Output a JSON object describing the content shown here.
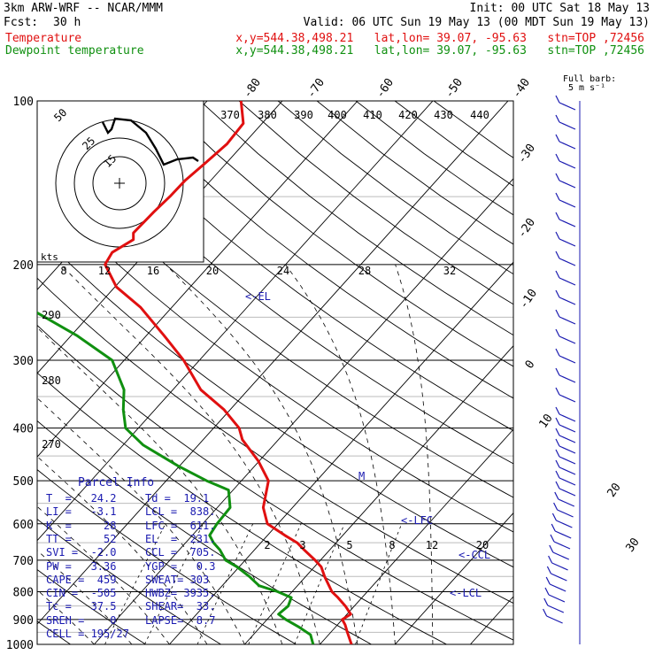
{
  "header": {
    "model": "3km ARW-WRF -- NCAR/MMM",
    "init": "Init: 00 UTC Sat 18 May 13",
    "fcst_label": "Fcst:",
    "fcst_value": "30 h",
    "valid": "Valid: 06 UTC Sun 19 May 13 (00 MDT Sun 19 May 13)",
    "temp_label": "Temperature",
    "dew_label": "Dewpoint temperature",
    "loc_info": "x,y=544.38,498.21   lat,lon= 39.07, -95.63   stn=TOP ,72456"
  },
  "colors": {
    "temperature": "#e01010",
    "dewpoint": "#109010",
    "parcel": "#1a1ab0",
    "isobar": "#000000",
    "grid": "#bbbbbb"
  },
  "barb_legend": {
    "line1": "Full barb:",
    "line2": "5 m s⁻¹"
  },
  "hodo_label": "kts",
  "annotations": {
    "el": "<-EL",
    "lfc": "<-LFC",
    "ccl": "<-CCL",
    "lcl": "<-LCL"
  },
  "parcel_info": {
    "title": "Parcel Info",
    "rows": [
      {
        "a": "T  =   24.2",
        "b": "Td =  19.1"
      },
      {
        "a": "LI =   -3.1",
        "b": "LCL =  838."
      },
      {
        "a": "K  =     28",
        "b": "LFC =  611."
      },
      {
        "a": "TT =     52",
        "b": "EL  =  231."
      },
      {
        "a": "SVI =  -2.0",
        "b": "CCL =  705."
      },
      {
        "a": "PW =   3.36",
        "b": "YGP =   0.3"
      },
      {
        "a": "CAPE =  459",
        "b": "SWEAT= 303"
      },
      {
        "a": "CIN =  -505",
        "b": "HWBZ= 3935."
      },
      {
        "a": "Tc =   37.5",
        "b": "SHEAR=  33."
      },
      {
        "a": "SREH =    0",
        "b": "LAPSE=  8.7"
      },
      {
        "a": "CELL = 195/27",
        "b": ""
      }
    ]
  },
  "chart_data": {
    "type": "line",
    "title": "",
    "xlabel": "",
    "ylabel": "",
    "y_axis": "pressure (hPa), log scale",
    "y_ticks": [
      100,
      200,
      300,
      400,
      500,
      600,
      700,
      800,
      900,
      1000
    ],
    "temperature_labels": [
      "-80",
      "-70",
      "-60",
      "-50",
      "-40",
      "-30",
      "-20",
      "-10",
      "0",
      "10",
      "20",
      "30",
      "40"
    ],
    "theta_labels": [
      "370",
      "380",
      "390",
      "400",
      "410",
      "420",
      "430",
      "440",
      "290",
      "280",
      "270"
    ],
    "mixing_ratio_labels": [
      "2",
      "3",
      "5",
      "8",
      "12",
      "20"
    ],
    "hodograph_ring_labels": [
      "50",
      "25",
      "15"
    ],
    "hodo_speed_ticks": [
      "8",
      "12",
      "16",
      "20",
      "24",
      "28",
      "32"
    ],
    "series": [
      {
        "name": "Temperature",
        "pressure": [
          1000,
          950,
          920,
          900,
          880,
          850,
          820,
          800,
          780,
          750,
          720,
          700,
          670,
          650,
          630,
          600,
          560,
          500,
          460,
          420,
          400,
          370,
          340,
          300,
          270,
          240,
          220,
          200,
          190,
          180,
          175,
          160,
          150,
          140,
          130,
          120,
          110,
          100
        ],
        "temp": [
          24.2,
          22.2,
          21,
          20,
          20.5,
          18.8,
          16.8,
          15.3,
          14.2,
          12.5,
          10.9,
          9.3,
          6.6,
          4.8,
          2.3,
          -1.4,
          -3.9,
          -6.4,
          -10.1,
          -14.8,
          -16.6,
          -20.8,
          -26.3,
          -32.1,
          -37.7,
          -44.1,
          -49.8,
          -54,
          -54.5,
          -53.2,
          -54,
          -53.8,
          -53.5,
          -53.4,
          -52.8,
          -52.2,
          -52.5,
          -55.5
        ]
      },
      {
        "name": "Dewpoint temperature",
        "pressure": [
          1000,
          960,
          930,
          900,
          880,
          850,
          820,
          800,
          780,
          750,
          720,
          700,
          670,
          650,
          630,
          600,
          560,
          520,
          500,
          470,
          430,
          400,
          370,
          340,
          300,
          270,
          240,
          220,
          200,
          190,
          180,
          170,
          160,
          150,
          140,
          130,
          120,
          110,
          100
        ],
        "dew": [
          19.1,
          17.6,
          15.2,
          12.5,
          10.9,
          11.2,
          10.6,
          8.1,
          4.9,
          2.5,
          -0.3,
          -2.6,
          -4.6,
          -6.3,
          -7.7,
          -8.1,
          -8.3,
          -10.6,
          -14.6,
          -20.1,
          -27.3,
          -31.7,
          -34.2,
          -36.5,
          -41.6,
          -49.3,
          -59.1,
          -66.4,
          -73.3,
          -75.5,
          -77.5,
          -79.7,
          -80.5,
          -79.3,
          -79.8,
          -82,
          -84.5,
          -84.3,
          -84
        ]
      }
    ]
  }
}
